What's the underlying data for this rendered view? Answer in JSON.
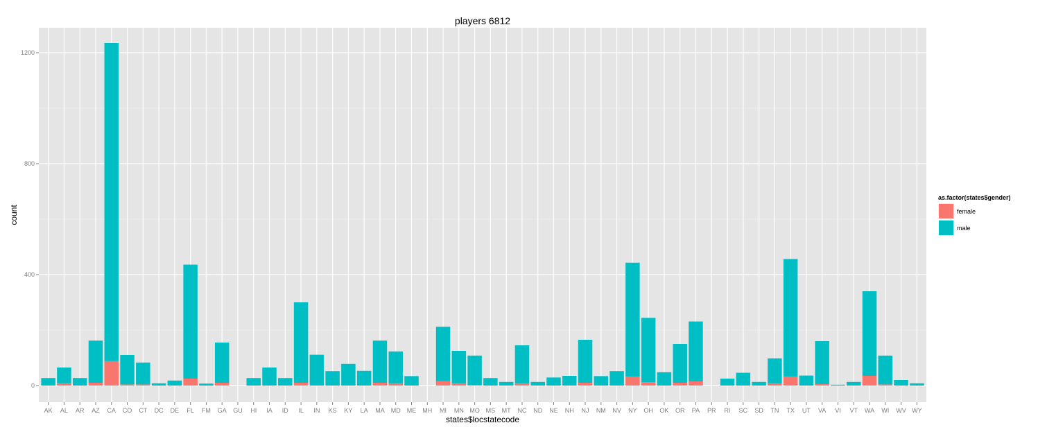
{
  "chart_data": {
    "type": "bar",
    "stacked": true,
    "title": "players 6812",
    "xlabel": "states$locstatecode",
    "ylabel": "count",
    "ylim": [
      -60,
      1290
    ],
    "yticks": [
      0,
      400,
      800,
      1200
    ],
    "grid": true,
    "legend_placement": "right",
    "legend_title": "as.factor(states$gender)",
    "categories": [
      "AK",
      "AL",
      "AR",
      "AZ",
      "CA",
      "CO",
      "CT",
      "DC",
      "DE",
      "FL",
      "FM",
      "GA",
      "GU",
      "HI",
      "IA",
      "ID",
      "IL",
      "IN",
      "KS",
      "KY",
      "LA",
      "MA",
      "MD",
      "ME",
      "MH",
      "MI",
      "MN",
      "MO",
      "MS",
      "MT",
      "NC",
      "ND",
      "NE",
      "NH",
      "NJ",
      "NM",
      "NV",
      "NY",
      "OH",
      "OK",
      "OR",
      "PA",
      "PR",
      "RI",
      "SC",
      "SD",
      "TN",
      "TX",
      "UT",
      "VA",
      "VI",
      "VT",
      "WA",
      "WI",
      "WV",
      "WY"
    ],
    "series": [
      {
        "name": "female",
        "color": "#F8766D",
        "values": [
          0,
          8,
          0,
          10,
          88,
          4,
          4,
          0,
          0,
          25,
          0,
          10,
          0,
          0,
          0,
          0,
          10,
          0,
          0,
          0,
          0,
          10,
          8,
          0,
          0,
          16,
          8,
          2,
          0,
          0,
          8,
          0,
          0,
          0,
          10,
          0,
          0,
          32,
          12,
          0,
          10,
          15,
          0,
          0,
          0,
          0,
          8,
          32,
          0,
          5,
          0,
          0,
          35,
          4,
          0,
          0
        ]
      },
      {
        "name": "male",
        "color": "#00BFC4",
        "values": [
          27,
          57,
          27,
          152,
          1147,
          106,
          79,
          8,
          18,
          411,
          7,
          145,
          0,
          27,
          65,
          27,
          290,
          111,
          52,
          78,
          53,
          152,
          115,
          34,
          0,
          196,
          117,
          106,
          27,
          13,
          137,
          13,
          29,
          35,
          155,
          34,
          52,
          411,
          232,
          48,
          140,
          216,
          0,
          25,
          46,
          13,
          90,
          424,
          36,
          155,
          3,
          13,
          305,
          104,
          20,
          8
        ]
      }
    ]
  }
}
